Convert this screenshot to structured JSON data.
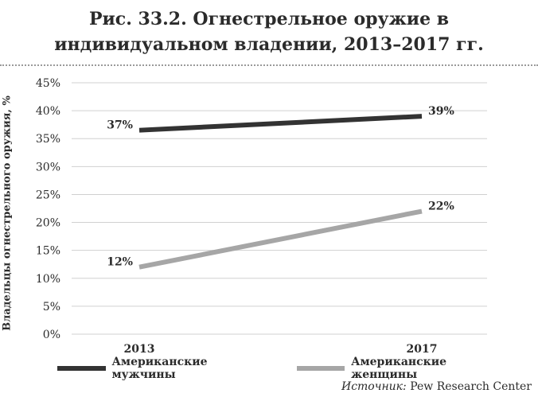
{
  "chart_data": {
    "type": "line",
    "title": "Рис. 33.2. Огнестрельное оружие в индивидуальном владении, 2013–2017 гг.",
    "ylabel": "Владельцы огнестрельного оружия, %",
    "xlabel": "",
    "categories": [
      "2013",
      "2017"
    ],
    "yticks": [
      "0%",
      "5%",
      "10%",
      "15%",
      "20%",
      "25%",
      "30%",
      "35%",
      "40%",
      "45%"
    ],
    "ylim": [
      0,
      45
    ],
    "grid": true,
    "legend_position": "bottom-left",
    "series": [
      {
        "name": "Американские мужчины",
        "values": [
          36.5,
          39
        ],
        "labels": [
          "37%",
          "39%"
        ],
        "color": "#333333"
      },
      {
        "name": "Американские женщины",
        "values": [
          12,
          22
        ],
        "labels": [
          "12%",
          "22%"
        ],
        "color": "#a6a6a6"
      }
    ]
  },
  "source": {
    "label": "Источник:",
    "text": "Pew Research Center"
  }
}
